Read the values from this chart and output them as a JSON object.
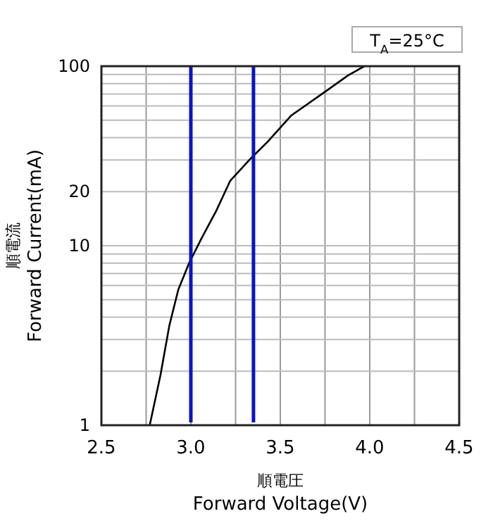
{
  "chart_data": {
    "type": "line",
    "xlabel": "順電圧\nForward Voltage(V)",
    "ylabel": "順電流\nForward Current(mA)",
    "annotations": [
      "T$_{A}$=25°C"
    ],
    "log": "y",
    "grid": true,
    "xlim": [
      2.5,
      4.5
    ],
    "ylim": [
      1,
      100
    ],
    "xticks": [
      {
        "value": 2.5,
        "label": "2.5"
      },
      {
        "value": 2.75,
        "label": null
      },
      {
        "value": 3,
        "label": "3.0"
      },
      {
        "value": 3.25,
        "label": null
      },
      {
        "value": 3.5,
        "label": "3.5"
      },
      {
        "value": 3.75,
        "label": null
      },
      {
        "value": 4,
        "label": "4.0"
      },
      {
        "value": 4.25,
        "label": null
      },
      {
        "value": 4.5,
        "label": "4.5"
      }
    ],
    "yticks": [
      1,
      {
        "value": 2,
        "label": null
      },
      {
        "value": 3,
        "label": null
      },
      {
        "value": 4,
        "label": null
      },
      {
        "value": 5,
        "label": null
      },
      {
        "value": 6,
        "label": null
      },
      {
        "value": 7,
        "label": null
      },
      {
        "value": 8,
        "label": null
      },
      {
        "value": 9,
        "label": null
      },
      10,
      20,
      {
        "value": 30,
        "label": null
      },
      {
        "value": 40,
        "label": null
      },
      {
        "value": 50,
        "label": null
      },
      {
        "value": 60,
        "label": null
      },
      {
        "value": 70,
        "label": null
      },
      {
        "value": 80,
        "label": null
      },
      {
        "value": 90,
        "label": null
      },
      100
    ],
    "ref_lines": [
      {
        "axis": "x",
        "value": 3.0,
        "color": "#0a14c8"
      },
      {
        "axis": "x",
        "value": 3.35,
        "color": "#0a14c8"
      }
    ],
    "series": [
      {
        "color": "#000000",
        "x": [
          2.77,
          2.83,
          2.88,
          2.93,
          2.99,
          3.06,
          3.14,
          3.22,
          3.34,
          3.43,
          3.56,
          3.75,
          3.88,
          3.97
        ],
        "values": [
          1,
          1.9,
          3.6,
          5.7,
          8,
          11,
          15.5,
          23,
          31,
          38,
          53,
          72,
          89,
          100
        ]
      }
    ]
  }
}
